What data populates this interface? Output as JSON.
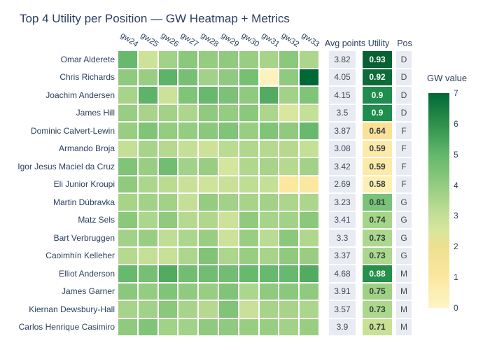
{
  "title": "Top 4 Utility per Position — GW Heatmap + Metrics",
  "columns": {
    "avg_label": "Avg points",
    "utility_label": "Utility",
    "pos_label": "Pos"
  },
  "colors": {
    "text_dark": "#2a3f5f",
    "metric_text": "#444b55",
    "utility_text_dark": "#363b40",
    "utility_text_light": "#ffffff",
    "band_bg": "#e8ebf2",
    "background": "#ffffff"
  },
  "colorbar": {
    "title": "GW value",
    "min": 0,
    "max": 7,
    "ticks": [
      "0",
      "1",
      "2",
      "3",
      "4",
      "5",
      "6",
      "7"
    ],
    "stops": [
      [
        0,
        "#fdf5c6"
      ],
      [
        1,
        "#fbe7a0"
      ],
      [
        2,
        "#eedf90"
      ],
      [
        2.5,
        "#d8e69e"
      ],
      [
        3,
        "#c4df96"
      ],
      [
        4,
        "#94cc80"
      ],
      [
        5,
        "#62b76b"
      ],
      [
        6,
        "#2e904b"
      ],
      [
        7,
        "#006837"
      ]
    ]
  },
  "chart_data": {
    "type": "heatmap",
    "x": [
      "gw24",
      "gw25",
      "gw26",
      "gw27",
      "gw28",
      "gw29",
      "gw30",
      "gw31",
      "gw32",
      "gw33"
    ],
    "zmin": 0,
    "zmax": 7,
    "legend_position": "right",
    "rows": [
      {
        "name": "Omar Alderete",
        "values": [
          4.9,
          2.8,
          3.7,
          4.2,
          4.0,
          4.1,
          3.9,
          3.6,
          4.2,
          3.5
        ],
        "avg": "3.82",
        "utility": "0.93",
        "utility_bg": "#086133",
        "utility_fg": "#ffffff",
        "pos": "D"
      },
      {
        "name": "Chris Richards",
        "values": [
          4.1,
          3.9,
          5.1,
          4.6,
          3.7,
          4.1,
          4.6,
          0.2,
          4.1,
          7.0
        ],
        "avg": "4.05",
        "utility": "0.92",
        "utility_bg": "#0c6c38",
        "utility_fg": "#ffffff",
        "pos": "D"
      },
      {
        "name": "Joachim Andersen",
        "values": [
          3.6,
          5.1,
          2.8,
          4.4,
          4.9,
          4.5,
          4.1,
          5.3,
          3.7,
          4.4
        ],
        "avg": "4.15",
        "utility": "0.9",
        "utility_bg": "#1f8e4d",
        "utility_fg": "#ffffff",
        "pos": "D"
      },
      {
        "name": "James Hill",
        "values": [
          3.9,
          3.6,
          3.7,
          3.5,
          4.1,
          4.0,
          4.2,
          3.5,
          2.5,
          3.0
        ],
        "avg": "3.5",
        "utility": "0.9",
        "utility_bg": "#1f8e4d",
        "utility_fg": "#ffffff",
        "pos": "D"
      },
      {
        "name": "Dominic Calvert-Lewin",
        "values": [
          3.9,
          4.4,
          4.0,
          4.0,
          4.2,
          4.4,
          3.9,
          4.4,
          4.1,
          4.9
        ],
        "avg": "3.87",
        "utility": "0.64",
        "utility_bg": "#fae196",
        "utility_fg": "#363b40",
        "pos": "F"
      },
      {
        "name": "Armando Broja",
        "values": [
          3.0,
          3.6,
          3.3,
          3.0,
          2.8,
          3.2,
          3.4,
          3.3,
          3.3,
          3.0
        ],
        "avg": "3.08",
        "utility": "0.59",
        "utility_bg": "#fbeaa8",
        "utility_fg": "#363b40",
        "pos": "F"
      },
      {
        "name": "Igor Jesus Maciel da Cruz",
        "values": [
          4.4,
          3.9,
          4.7,
          3.7,
          3.9,
          2.6,
          3.4,
          3.6,
          3.3,
          3.7
        ],
        "avg": "3.42",
        "utility": "0.59",
        "utility_bg": "#fbeaa8",
        "utility_fg": "#363b40",
        "pos": "F"
      },
      {
        "name": "Eli Junior Kroupi",
        "values": [
          4.1,
          3.5,
          3.2,
          2.9,
          2.7,
          2.9,
          3.1,
          3.0,
          1.0,
          1.0
        ],
        "avg": "2.69",
        "utility": "0.58",
        "utility_bg": "#fdf0b5",
        "utility_fg": "#363b40",
        "pos": "F"
      },
      {
        "name": "Martin Dúbravka",
        "values": [
          3.6,
          3.7,
          3.7,
          3.0,
          4.0,
          3.7,
          3.6,
          3.7,
          3.5,
          3.5
        ],
        "avg": "3.23",
        "utility": "0.81",
        "utility_bg": "#79c378",
        "utility_fg": "#363b40",
        "pos": "G"
      },
      {
        "name": "Matz Sels",
        "values": [
          4.2,
          3.5,
          4.1,
          3.3,
          3.4,
          2.8,
          4.1,
          3.6,
          3.7,
          4.2
        ],
        "avg": "3.41",
        "utility": "0.74",
        "utility_bg": "#a5d687",
        "utility_fg": "#363b40",
        "pos": "G"
      },
      {
        "name": "Bart Verbruggen",
        "values": [
          3.7,
          3.9,
          3.1,
          3.5,
          3.9,
          2.8,
          3.9,
          3.2,
          4.2,
          3.4
        ],
        "avg": "3.3",
        "utility": "0.73",
        "utility_bg": "#abd88c",
        "utility_fg": "#363b40",
        "pos": "G"
      },
      {
        "name": "Caoimhín Kelleher",
        "values": [
          3.3,
          3.0,
          2.9,
          3.5,
          4.4,
          3.5,
          3.9,
          3.6,
          4.1,
          3.9
        ],
        "avg": "3.37",
        "utility": "0.73",
        "utility_bg": "#abd88c",
        "utility_fg": "#363b40",
        "pos": "G"
      },
      {
        "name": "Elliot Anderson",
        "values": [
          4.9,
          4.6,
          5.3,
          4.7,
          4.7,
          4.7,
          4.9,
          4.9,
          4.9,
          5.3
        ],
        "avg": "4.68",
        "utility": "0.88",
        "utility_bg": "#259049",
        "utility_fg": "#ffffff",
        "pos": "M"
      },
      {
        "name": "James Garner",
        "values": [
          4.2,
          4.0,
          4.4,
          4.1,
          3.9,
          4.4,
          3.5,
          4.1,
          4.2,
          4.1
        ],
        "avg": "3.91",
        "utility": "0.75",
        "utility_bg": "#9ed283",
        "utility_fg": "#363b40",
        "pos": "M"
      },
      {
        "name": "Kiernan Dewsbury-Hall",
        "values": [
          3.6,
          3.7,
          4.2,
          3.6,
          3.3,
          4.4,
          2.9,
          3.6,
          3.6,
          3.5
        ],
        "avg": "3.57",
        "utility": "0.73",
        "utility_bg": "#abd88c",
        "utility_fg": "#363b40",
        "pos": "M"
      },
      {
        "name": "Carlos Henrique Casimiro",
        "values": [
          4.1,
          4.4,
          3.7,
          3.7,
          4.1,
          4.1,
          3.9,
          3.9,
          3.7,
          3.9
        ],
        "avg": "3.9",
        "utility": "0.71",
        "utility_bg": "#c9e194",
        "utility_fg": "#363b40",
        "pos": "M"
      }
    ]
  }
}
